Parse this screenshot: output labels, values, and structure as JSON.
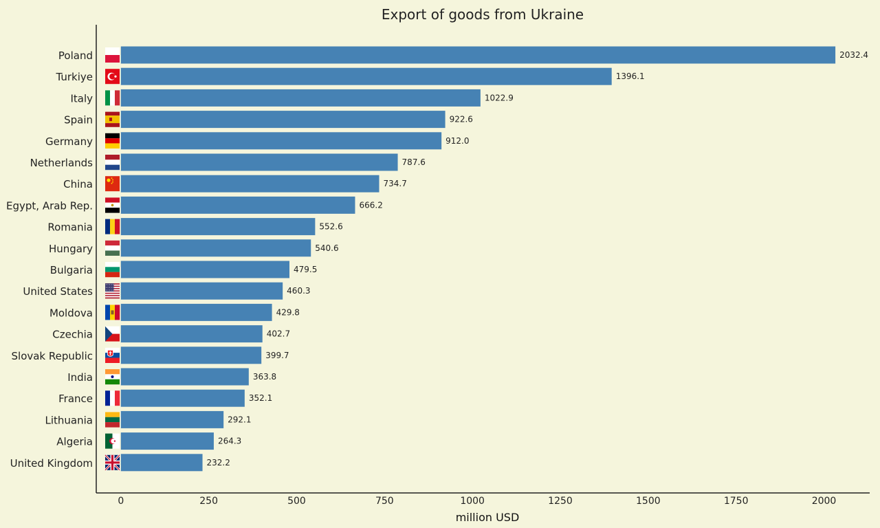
{
  "chart_data": {
    "type": "bar",
    "orientation": "horizontal",
    "title": "Export of goods from Ukraine",
    "xlabel": "million USD",
    "ylabel": "",
    "xlim": [
      -70,
      2130
    ],
    "xticks": [
      0,
      250,
      500,
      750,
      1000,
      1250,
      1500,
      1750,
      2000
    ],
    "grid": false,
    "legend": "none",
    "bar_color": "#4682b4",
    "background_color": "#f5f5dc",
    "categories": [
      "Poland",
      "Turkiye",
      "Italy",
      "Spain",
      "Germany",
      "Netherlands",
      "China",
      "Egypt, Arab Rep.",
      "Romania",
      "Hungary",
      "Bulgaria",
      "United States",
      "Moldova",
      "Czechia",
      "Slovak Republic",
      "India",
      "France",
      "Lithuania",
      "Algeria",
      "United Kingdom"
    ],
    "values": [
      2032.4,
      1396.1,
      1022.9,
      922.6,
      912.0,
      787.6,
      734.7,
      666.2,
      552.6,
      540.6,
      479.5,
      460.3,
      429.8,
      402.7,
      399.7,
      363.8,
      352.1,
      292.1,
      264.3,
      232.2
    ],
    "value_labels": [
      "2032.4",
      "1396.1",
      "1022.9",
      "922.6",
      "912.0",
      "787.6",
      "734.7",
      "666.2",
      "552.6",
      "540.6",
      "479.5",
      "460.3",
      "429.8",
      "402.7",
      "399.7",
      "363.8",
      "352.1",
      "292.1",
      "264.3",
      "232.2"
    ],
    "flag_icons": [
      "poland-flag-icon",
      "turkey-flag-icon",
      "italy-flag-icon",
      "spain-flag-icon",
      "germany-flag-icon",
      "netherlands-flag-icon",
      "china-flag-icon",
      "egypt-flag-icon",
      "romania-flag-icon",
      "hungary-flag-icon",
      "bulgaria-flag-icon",
      "united-states-flag-icon",
      "moldova-flag-icon",
      "czechia-flag-icon",
      "slovakia-flag-icon",
      "india-flag-icon",
      "france-flag-icon",
      "lithuania-flag-icon",
      "algeria-flag-icon",
      "united-kingdom-flag-icon"
    ]
  }
}
